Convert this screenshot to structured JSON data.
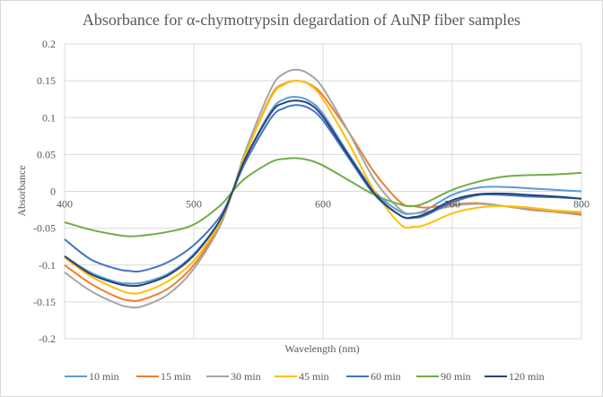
{
  "chart_data": {
    "type": "line",
    "title": "Absorbance for α-chymotrypsin degardation of AuNP fiber samples",
    "xlabel": "Wavelength (nm)",
    "ylabel": "Absorbance",
    "xlim": [
      400,
      800
    ],
    "ylim": [
      -0.2,
      0.2
    ],
    "x_ticks": [
      400,
      500,
      600,
      700,
      800
    ],
    "y_ticks": [
      0.2,
      0.15,
      0.1,
      0.05,
      0,
      -0.05,
      -0.1,
      -0.15,
      -0.2
    ],
    "y_tick_labels": [
      "0.2",
      "0.15",
      "0.1",
      "0.05",
      "0",
      "-0.05",
      "-0.1",
      "-0.15",
      "-0.2"
    ],
    "grid": true,
    "legend_position": "bottom",
    "x": [
      400,
      420,
      440,
      450,
      460,
      480,
      500,
      520,
      530,
      540,
      560,
      570,
      580,
      590,
      600,
      620,
      640,
      660,
      670,
      680,
      700,
      720,
      740,
      760,
      780,
      800
    ],
    "series": [
      {
        "name": "10 min",
        "color": "#5B9BD5",
        "values": [
          -0.088,
          -0.11,
          -0.123,
          -0.125,
          -0.124,
          -0.112,
          -0.085,
          -0.04,
          0.0,
          0.045,
          0.11,
          0.125,
          0.128,
          0.122,
          0.105,
          0.05,
          0.0,
          -0.028,
          -0.03,
          -0.025,
          -0.005,
          0.005,
          0.006,
          0.004,
          0.002,
          0.0
        ]
      },
      {
        "name": "15 min",
        "color": "#ED7D31",
        "values": [
          -0.1,
          -0.125,
          -0.143,
          -0.148,
          -0.147,
          -0.132,
          -0.1,
          -0.045,
          0.0,
          0.05,
          0.13,
          0.146,
          0.15,
          0.145,
          0.13,
          0.08,
          0.025,
          -0.015,
          -0.02,
          -0.022,
          -0.018,
          -0.016,
          -0.02,
          -0.025,
          -0.028,
          -0.032
        ]
      },
      {
        "name": "30 min",
        "color": "#A5A5A5",
        "values": [
          -0.11,
          -0.135,
          -0.152,
          -0.157,
          -0.156,
          -0.14,
          -0.105,
          -0.048,
          0.0,
          0.055,
          0.14,
          0.16,
          0.165,
          0.158,
          0.14,
          0.08,
          0.015,
          -0.025,
          -0.03,
          -0.028,
          -0.02,
          -0.017,
          -0.02,
          -0.024,
          -0.027,
          -0.03
        ]
      },
      {
        "name": "45 min",
        "color": "#FFC000",
        "values": [
          -0.09,
          -0.115,
          -0.132,
          -0.138,
          -0.137,
          -0.122,
          -0.094,
          -0.043,
          0.0,
          0.05,
          0.128,
          0.145,
          0.15,
          0.144,
          0.125,
          0.065,
          0.0,
          -0.045,
          -0.048,
          -0.045,
          -0.03,
          -0.022,
          -0.02,
          -0.022,
          -0.026,
          -0.028
        ]
      },
      {
        "name": "60 min",
        "color": "#4472C4",
        "values": [
          -0.065,
          -0.092,
          -0.105,
          -0.108,
          -0.108,
          -0.096,
          -0.073,
          -0.035,
          0.0,
          0.04,
          0.1,
          0.113,
          0.117,
          0.112,
          0.096,
          0.045,
          -0.005,
          -0.033,
          -0.036,
          -0.032,
          -0.015,
          -0.005,
          -0.005,
          -0.007,
          -0.008,
          -0.01
        ]
      },
      {
        "name": "90 min",
        "color": "#70AD47",
        "values": [
          -0.042,
          -0.052,
          -0.059,
          -0.061,
          -0.06,
          -0.055,
          -0.045,
          -0.02,
          0.0,
          0.018,
          0.04,
          0.044,
          0.045,
          0.042,
          0.035,
          0.015,
          -0.005,
          -0.018,
          -0.02,
          -0.015,
          0.002,
          0.013,
          0.02,
          0.022,
          0.023,
          0.025
        ]
      },
      {
        "name": "120 min",
        "color": "#264478",
        "values": [
          -0.088,
          -0.112,
          -0.125,
          -0.128,
          -0.127,
          -0.114,
          -0.087,
          -0.04,
          0.0,
          0.045,
          0.107,
          0.12,
          0.123,
          0.118,
          0.101,
          0.048,
          -0.003,
          -0.033,
          -0.035,
          -0.03,
          -0.012,
          -0.004,
          -0.003,
          -0.005,
          -0.007,
          -0.01
        ]
      }
    ]
  }
}
